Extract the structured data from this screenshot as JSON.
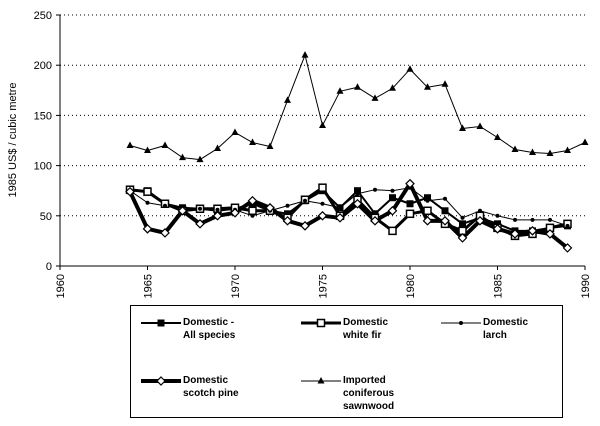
{
  "chart_data": {
    "type": "line",
    "y_label": "1985 US$ / cubic metre",
    "x": [
      1964,
      1965,
      1966,
      1967,
      1968,
      1969,
      1970,
      1971,
      1972,
      1973,
      1974,
      1975,
      1976,
      1977,
      1978,
      1979,
      1980,
      1981,
      1982,
      1983,
      1984,
      1985,
      1986,
      1987,
      1988,
      1989,
      1990
    ],
    "xlim": [
      1960,
      1990
    ],
    "xticks": [
      1960,
      1965,
      1970,
      1975,
      1980,
      1985,
      1990
    ],
    "ylim": [
      0,
      250
    ],
    "yticks": [
      0,
      50,
      100,
      150,
      200,
      250
    ],
    "grid": true,
    "legend": "bottom",
    "series": [
      {
        "name": "Domestic - All species",
        "color": "#000000",
        "marker": "filled-square",
        "width": 2,
        "values": [
          75,
          75,
          62,
          58,
          57,
          55,
          57,
          62,
          55,
          52,
          65,
          75,
          58,
          75,
          52,
          68,
          62,
          68,
          55,
          42,
          48,
          42,
          35,
          35,
          38,
          40,
          null
        ]
      },
      {
        "name": "Domestic white fir",
        "color": "#000000",
        "marker": "open-square",
        "width": 3,
        "values": [
          76,
          74,
          62,
          55,
          57,
          57,
          58,
          55,
          55,
          48,
          66,
          78,
          50,
          66,
          48,
          35,
          52,
          55,
          42,
          35,
          50,
          38,
          30,
          32,
          38,
          42,
          null
        ]
      },
      {
        "name": "Domestic larch",
        "color": "#000000",
        "marker": "dot",
        "width": 1,
        "values": [
          75,
          63,
          60,
          57,
          57,
          56,
          56,
          50,
          55,
          60,
          65,
          62,
          58,
          72,
          76,
          75,
          78,
          65,
          67,
          48,
          55,
          50,
          46,
          46,
          46,
          40,
          null
        ]
      },
      {
        "name": "Domestic scotch pine",
        "color": "#000000",
        "marker": "open-diamond",
        "width": 4,
        "values": [
          74,
          37,
          33,
          55,
          42,
          50,
          53,
          65,
          58,
          45,
          40,
          50,
          48,
          62,
          45,
          55,
          82,
          45,
          45,
          28,
          45,
          37,
          32,
          35,
          32,
          18,
          null
        ]
      },
      {
        "name": "Imported coniferous sawnwood",
        "color": "#000000",
        "marker": "triangle",
        "width": 1,
        "values": [
          120,
          115,
          120,
          108,
          106,
          117,
          133,
          123,
          119,
          165,
          210,
          140,
          174,
          178,
          167,
          177,
          196,
          178,
          181,
          137,
          139,
          128,
          116,
          113,
          112,
          115,
          123
        ]
      }
    ]
  }
}
